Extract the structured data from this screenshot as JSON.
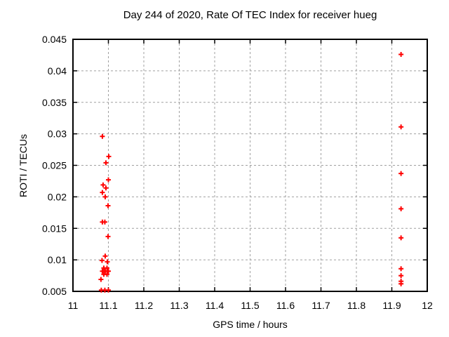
{
  "window": {
    "background": "#ffffff"
  },
  "chart_data": {
    "type": "scatter",
    "title": "Day 244 of 2020, Rate Of TEC Index for receiver hueg",
    "xlabel": "GPS time / hours",
    "ylabel": "ROTI / TECUs",
    "xlim": [
      11,
      12
    ],
    "ylim": [
      0.005,
      0.045
    ],
    "xticks": {
      "values": [
        11,
        11.1,
        11.2,
        11.3,
        11.4,
        11.5,
        11.6,
        11.7,
        11.8,
        11.9,
        12
      ],
      "labels": [
        "11",
        "11.1",
        "11.2",
        "11.3",
        "11.4",
        "11.5",
        "11.6",
        "11.7",
        "11.8",
        "11.9",
        "12"
      ]
    },
    "yticks": {
      "values": [
        0.005,
        0.01,
        0.015,
        0.02,
        0.025,
        0.03,
        0.035,
        0.04,
        0.045
      ],
      "labels": [
        "0.005",
        "0.01",
        "0.015",
        "0.02",
        "0.025",
        "0.03",
        "0.035",
        "0.04",
        "0.045"
      ]
    },
    "grid": true,
    "legend_position": "none",
    "marker": {
      "shape": "plus",
      "color": "#ff0000",
      "size": 7
    },
    "axis_color": "#000000",
    "grid_color": "#a0a0a0",
    "series": [
      {
        "name": "ROTI",
        "points": [
          [
            11.083,
            0.0296
          ],
          [
            11.101,
            0.0264
          ],
          [
            11.093,
            0.0254
          ],
          [
            11.1,
            0.0227
          ],
          [
            11.085,
            0.0219
          ],
          [
            11.093,
            0.0214
          ],
          [
            11.083,
            0.0207
          ],
          [
            11.091,
            0.02
          ],
          [
            11.099,
            0.0186
          ],
          [
            11.083,
            0.016
          ],
          [
            11.09,
            0.016
          ],
          [
            11.099,
            0.0137
          ],
          [
            11.091,
            0.0106
          ],
          [
            11.082,
            0.0099
          ],
          [
            11.097,
            0.0097
          ],
          [
            11.087,
            0.0087
          ],
          [
            11.096,
            0.0087
          ],
          [
            11.083,
            0.0082
          ],
          [
            11.091,
            0.0082
          ],
          [
            11.1,
            0.0082
          ],
          [
            11.087,
            0.0077
          ],
          [
            11.096,
            0.0077
          ],
          [
            11.079,
            0.0069
          ],
          [
            11.08,
            0.0052
          ],
          [
            11.09,
            0.0052
          ],
          [
            11.1,
            0.0052
          ],
          [
            11.926,
            0.0426
          ],
          [
            11.926,
            0.0311
          ],
          [
            11.926,
            0.0237
          ],
          [
            11.926,
            0.0181
          ],
          [
            11.926,
            0.0135
          ],
          [
            11.926,
            0.0086
          ],
          [
            11.926,
            0.0075
          ],
          [
            11.926,
            0.0066
          ],
          [
            11.926,
            0.0062
          ]
        ]
      }
    ]
  }
}
